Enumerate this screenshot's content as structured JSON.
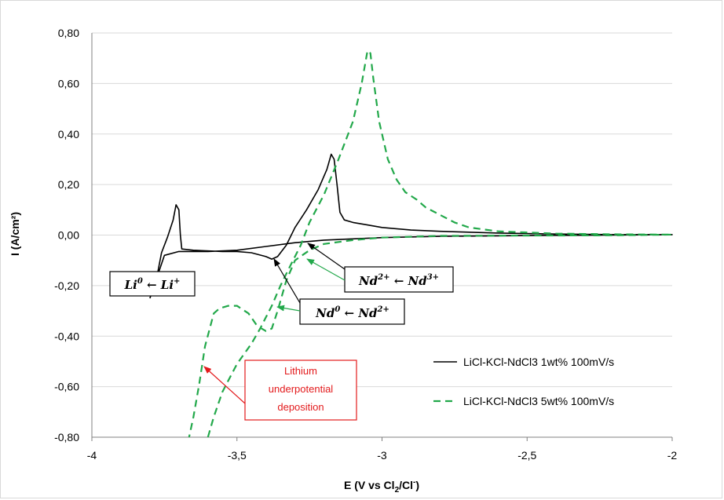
{
  "chart_data": {
    "type": "line",
    "xlabel": {
      "main": "E (V vs Cl",
      "sub": "2",
      "mid": "/Cl",
      "sup": "-",
      "end": ")"
    },
    "ylabel": "I (A/cm²)",
    "xlim": [
      -4,
      -2
    ],
    "ylim": [
      -0.8,
      0.8
    ],
    "x_ticks": [
      -4,
      -3.5,
      -3,
      -2.5,
      -2
    ],
    "x_tick_labels": [
      "-4",
      "-3,5",
      "-3",
      "-2,5",
      "-2"
    ],
    "y_ticks": [
      0.8,
      0.6,
      0.4,
      0.2,
      0.0,
      -0.2,
      -0.4,
      -0.6,
      -0.8
    ],
    "y_tick_labels": [
      "0,80",
      "0,60",
      "0,40",
      "0,20",
      "0,00",
      "-0,20",
      "-0,40",
      "-0,60",
      "-0,80"
    ],
    "grid": "horizontal",
    "legend_position": "right",
    "series": [
      {
        "name": "LiCl-KCl-NdCl3 1wt% 100mV/s",
        "color": "#000000",
        "dash": "solid",
        "points": [
          [
            -3.8,
            -0.25
          ],
          [
            -3.775,
            -0.16
          ],
          [
            -3.76,
            -0.07
          ],
          [
            -3.74,
            -0.01
          ],
          [
            -3.72,
            0.06
          ],
          [
            -3.71,
            0.12
          ],
          [
            -3.7,
            0.1
          ],
          [
            -3.695,
            0.0
          ],
          [
            -3.69,
            -0.055
          ],
          [
            -3.65,
            -0.06
          ],
          [
            -3.55,
            -0.065
          ],
          [
            -3.5,
            -0.065
          ],
          [
            -3.45,
            -0.07
          ],
          [
            -3.4,
            -0.085
          ],
          [
            -3.38,
            -0.095
          ],
          [
            -3.36,
            -0.085
          ],
          [
            -3.33,
            -0.04
          ],
          [
            -3.3,
            0.03
          ],
          [
            -3.26,
            0.1
          ],
          [
            -3.22,
            0.18
          ],
          [
            -3.19,
            0.26
          ],
          [
            -3.175,
            0.32
          ],
          [
            -3.165,
            0.3
          ],
          [
            -3.155,
            0.2
          ],
          [
            -3.145,
            0.09
          ],
          [
            -3.13,
            0.06
          ],
          [
            -3.1,
            0.05
          ],
          [
            -3.05,
            0.04
          ],
          [
            -3.0,
            0.03
          ],
          [
            -2.9,
            0.02
          ],
          [
            -2.8,
            0.015
          ],
          [
            -2.6,
            0.008
          ],
          [
            -2.4,
            0.004
          ],
          [
            -2.2,
            0.002
          ],
          [
            -2.0,
            0.002
          ],
          [
            -2.2,
            0.0
          ],
          [
            -2.5,
            -0.002
          ],
          [
            -2.8,
            -0.005
          ],
          [
            -3.0,
            -0.01
          ],
          [
            -3.2,
            -0.02
          ],
          [
            -3.3,
            -0.03
          ],
          [
            -3.4,
            -0.045
          ],
          [
            -3.5,
            -0.06
          ],
          [
            -3.6,
            -0.065
          ],
          [
            -3.7,
            -0.065
          ],
          [
            -3.75,
            -0.08
          ],
          [
            -3.8,
            -0.25
          ]
        ]
      },
      {
        "name": "LiCl-KCl-NdCl3 5wt% 100mV/s",
        "color": "#22a84a",
        "dash": "dashed",
        "points": [
          [
            -3.6,
            -0.8
          ],
          [
            -3.58,
            -0.72
          ],
          [
            -3.55,
            -0.62
          ],
          [
            -3.5,
            -0.51
          ],
          [
            -3.45,
            -0.43
          ],
          [
            -3.42,
            -0.37
          ],
          [
            -3.38,
            -0.28
          ],
          [
            -3.35,
            -0.2
          ],
          [
            -3.32,
            -0.13
          ],
          [
            -3.28,
            -0.04
          ],
          [
            -3.25,
            0.05
          ],
          [
            -3.2,
            0.16
          ],
          [
            -3.15,
            0.3
          ],
          [
            -3.1,
            0.45
          ],
          [
            -3.07,
            0.6
          ],
          [
            -3.05,
            0.73
          ],
          [
            -3.04,
            0.72
          ],
          [
            -3.03,
            0.62
          ],
          [
            -3.01,
            0.45
          ],
          [
            -2.98,
            0.3
          ],
          [
            -2.95,
            0.22
          ],
          [
            -2.92,
            0.17
          ],
          [
            -2.88,
            0.14
          ],
          [
            -2.85,
            0.11
          ],
          [
            -2.8,
            0.08
          ],
          [
            -2.75,
            0.05
          ],
          [
            -2.7,
            0.03
          ],
          [
            -2.6,
            0.015
          ],
          [
            -2.4,
            0.006
          ],
          [
            -2.2,
            0.003
          ],
          [
            -2.0,
            0.002
          ],
          [
            -2.2,
            -0.001
          ],
          [
            -2.5,
            -0.002
          ],
          [
            -2.8,
            -0.003
          ],
          [
            -3.0,
            -0.01
          ],
          [
            -3.1,
            -0.02
          ],
          [
            -3.2,
            -0.035
          ],
          [
            -3.25,
            -0.06
          ],
          [
            -3.3,
            -0.1
          ],
          [
            -3.33,
            -0.18
          ],
          [
            -3.36,
            -0.3
          ],
          [
            -3.38,
            -0.37
          ],
          [
            -3.4,
            -0.38
          ],
          [
            -3.43,
            -0.36
          ],
          [
            -3.46,
            -0.31
          ],
          [
            -3.5,
            -0.28
          ],
          [
            -3.53,
            -0.28
          ],
          [
            -3.56,
            -0.29
          ],
          [
            -3.58,
            -0.31
          ],
          [
            -3.61,
            -0.44
          ],
          [
            -3.63,
            -0.59
          ],
          [
            -3.65,
            -0.72
          ],
          [
            -3.665,
            -0.8
          ]
        ]
      }
    ],
    "annotations": [
      {
        "id": "li",
        "a": "Li",
        "a_sup": "0",
        "arrow": " ← ",
        "b": "Li",
        "b_sup": "+"
      },
      {
        "id": "nd0",
        "a": "Nd",
        "a_sup": "0",
        "arrow": " ← ",
        "b": "Nd",
        "b_sup": "2+"
      },
      {
        "id": "nd2",
        "a": "Nd",
        "a_sup": "2+",
        "arrow": " ← ",
        "b": "Nd",
        "b_sup": "3+"
      },
      {
        "id": "upd",
        "lines": [
          "Lithium",
          "underpotential",
          "deposition"
        ],
        "color": "#e31a1c"
      }
    ]
  }
}
